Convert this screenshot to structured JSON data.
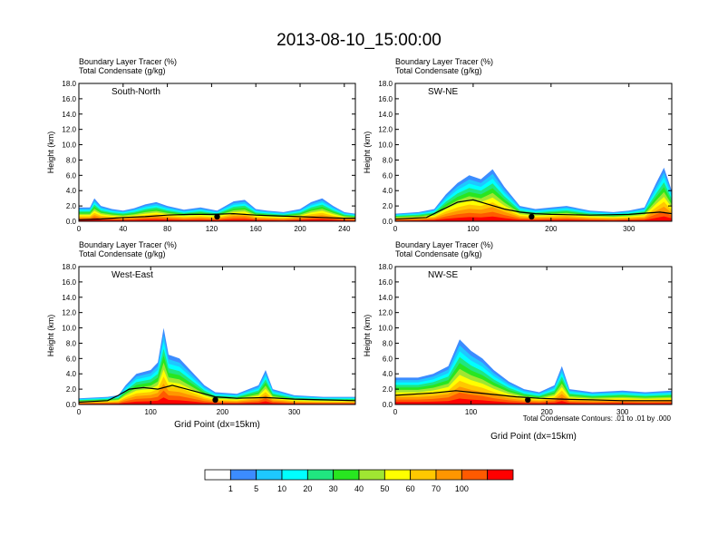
{
  "figure": {
    "title": "2013-08-10_15:00:00",
    "footnote": "Total Condensate Contours: .01 to .01 by .000",
    "colorbar": {
      "colors": [
        "#ffffff",
        "#3c8cff",
        "#1ec8ff",
        "#00ffff",
        "#20e680",
        "#28e620",
        "#a0e632",
        "#ffff00",
        "#ffc800",
        "#ff9600",
        "#ff5a00",
        "#ff0000"
      ],
      "labels": [
        "1",
        "5",
        "10",
        "20",
        "30",
        "40",
        "50",
        "60",
        "70",
        "100"
      ]
    }
  },
  "chart_data": [
    {
      "type": "heatmap",
      "panel_label": "South-North",
      "subtitle_1": "Boundary Layer Tracer    (%)",
      "subtitle_2": "Total Condensate    (g/kg)",
      "xlabel": "",
      "ylabel": "Height (km)",
      "xlim": [
        0,
        250
      ],
      "ylim": [
        0,
        18
      ],
      "xticks": [
        0,
        40,
        80,
        120,
        160,
        200,
        240
      ],
      "yticks": [
        0,
        2,
        4,
        6,
        8,
        10,
        12,
        14,
        16,
        18
      ],
      "tracer_profile": [
        [
          0,
          1.8
        ],
        [
          10,
          1.8
        ],
        [
          14,
          3.0
        ],
        [
          20,
          2.0
        ],
        [
          30,
          1.6
        ],
        [
          40,
          1.4
        ],
        [
          50,
          1.7
        ],
        [
          60,
          2.2
        ],
        [
          70,
          2.5
        ],
        [
          80,
          2.0
        ],
        [
          95,
          1.5
        ],
        [
          110,
          1.8
        ],
        [
          125,
          1.4
        ],
        [
          140,
          2.6
        ],
        [
          150,
          2.8
        ],
        [
          160,
          1.6
        ],
        [
          170,
          1.4
        ],
        [
          185,
          1.2
        ],
        [
          200,
          1.6
        ],
        [
          210,
          2.5
        ],
        [
          220,
          3.0
        ],
        [
          230,
          2.0
        ],
        [
          240,
          1.2
        ],
        [
          250,
          1.0
        ]
      ],
      "terrain_profile": [
        [
          0,
          0.2
        ],
        [
          20,
          0.3
        ],
        [
          40,
          0.5
        ],
        [
          60,
          0.6
        ],
        [
          80,
          0.8
        ],
        [
          100,
          0.9
        ],
        [
          120,
          0.9
        ],
        [
          140,
          1.0
        ],
        [
          160,
          0.8
        ],
        [
          180,
          0.7
        ],
        [
          200,
          0.6
        ],
        [
          220,
          0.5
        ],
        [
          240,
          0.4
        ],
        [
          250,
          0.4
        ]
      ],
      "marker_x": 125
    },
    {
      "type": "heatmap",
      "panel_label": "SW-NE",
      "subtitle_1": "Boundary Layer Tracer    (%)",
      "subtitle_2": "Total Condensate    (g/kg)",
      "xlabel": "",
      "ylabel": "Height (km)",
      "xlim": [
        0,
        355
      ],
      "ylim": [
        0,
        18
      ],
      "xticks": [
        0,
        100,
        200,
        300
      ],
      "yticks": [
        0,
        2,
        4,
        6,
        8,
        10,
        12,
        14,
        16,
        18
      ],
      "tracer_profile": [
        [
          0,
          1.0
        ],
        [
          30,
          1.2
        ],
        [
          50,
          1.6
        ],
        [
          65,
          3.5
        ],
        [
          80,
          5.0
        ],
        [
          95,
          6.0
        ],
        [
          110,
          5.5
        ],
        [
          125,
          6.8
        ],
        [
          140,
          4.5
        ],
        [
          160,
          2.0
        ],
        [
          180,
          1.6
        ],
        [
          200,
          1.8
        ],
        [
          220,
          2.0
        ],
        [
          250,
          1.4
        ],
        [
          280,
          1.2
        ],
        [
          300,
          1.4
        ],
        [
          320,
          1.8
        ],
        [
          335,
          5.0
        ],
        [
          345,
          7.0
        ],
        [
          355,
          4.0
        ]
      ],
      "terrain_profile": [
        [
          0,
          0.3
        ],
        [
          40,
          0.5
        ],
        [
          60,
          1.5
        ],
        [
          80,
          2.5
        ],
        [
          100,
          2.8
        ],
        [
          120,
          2.2
        ],
        [
          140,
          1.6
        ],
        [
          160,
          1.2
        ],
        [
          180,
          1.0
        ],
        [
          200,
          0.9
        ],
        [
          250,
          0.8
        ],
        [
          300,
          0.9
        ],
        [
          340,
          1.2
        ],
        [
          355,
          1.0
        ]
      ],
      "marker_x": 175
    },
    {
      "type": "heatmap",
      "panel_label": "West-East",
      "subtitle_1": "Boundary Layer Tracer    (%)",
      "subtitle_2": "Total Condensate    (g/kg)",
      "xlabel": "Grid Point (dx=15km)",
      "ylabel": "Height (km)",
      "xlim": [
        0,
        385
      ],
      "ylim": [
        0,
        18
      ],
      "xticks": [
        0,
        100,
        200,
        300
      ],
      "yticks": [
        0,
        2,
        4,
        6,
        8,
        10,
        12,
        14,
        16,
        18
      ],
      "tracer_profile": [
        [
          0,
          0.8
        ],
        [
          40,
          1.0
        ],
        [
          55,
          1.2
        ],
        [
          65,
          2.5
        ],
        [
          80,
          4.0
        ],
        [
          100,
          4.5
        ],
        [
          110,
          5.5
        ],
        [
          118,
          10.0
        ],
        [
          125,
          6.5
        ],
        [
          140,
          6.0
        ],
        [
          160,
          4.0
        ],
        [
          175,
          2.5
        ],
        [
          190,
          1.6
        ],
        [
          220,
          1.4
        ],
        [
          250,
          2.5
        ],
        [
          260,
          4.5
        ],
        [
          270,
          2.0
        ],
        [
          300,
          1.2
        ],
        [
          340,
          1.0
        ],
        [
          385,
          1.0
        ]
      ],
      "terrain_profile": [
        [
          0,
          0.3
        ],
        [
          40,
          0.5
        ],
        [
          55,
          1.2
        ],
        [
          70,
          2.0
        ],
        [
          90,
          2.2
        ],
        [
          110,
          2.0
        ],
        [
          130,
          2.5
        ],
        [
          150,
          2.0
        ],
        [
          170,
          1.5
        ],
        [
          190,
          1.0
        ],
        [
          220,
          0.8
        ],
        [
          260,
          0.9
        ],
        [
          300,
          0.7
        ],
        [
          340,
          0.6
        ],
        [
          385,
          0.5
        ]
      ],
      "marker_x": 190
    },
    {
      "type": "heatmap",
      "panel_label": "NW-SE",
      "subtitle_1": "Boundary Layer Tracer    (%)",
      "subtitle_2": "Total Condensate    (g/kg)",
      "xlabel": "Grid Point (dx=15km)",
      "ylabel": "Height (km)",
      "xlim": [
        0,
        365
      ],
      "ylim": [
        0,
        18
      ],
      "xticks": [
        0,
        100,
        200,
        300
      ],
      "yticks": [
        0,
        2,
        4,
        6,
        8,
        10,
        12,
        14,
        16,
        18
      ],
      "tracer_profile": [
        [
          0,
          3.5
        ],
        [
          30,
          3.5
        ],
        [
          50,
          4.0
        ],
        [
          70,
          5.0
        ],
        [
          85,
          8.5
        ],
        [
          100,
          7.0
        ],
        [
          115,
          6.0
        ],
        [
          130,
          4.5
        ],
        [
          150,
          3.0
        ],
        [
          170,
          2.0
        ],
        [
          190,
          1.6
        ],
        [
          210,
          2.5
        ],
        [
          220,
          5.0
        ],
        [
          230,
          2.0
        ],
        [
          260,
          1.6
        ],
        [
          300,
          1.8
        ],
        [
          330,
          1.6
        ],
        [
          365,
          1.8
        ]
      ],
      "terrain_profile": [
        [
          0,
          1.2
        ],
        [
          50,
          1.5
        ],
        [
          80,
          1.8
        ],
        [
          100,
          1.6
        ],
        [
          130,
          1.3
        ],
        [
          160,
          1.0
        ],
        [
          190,
          0.8
        ],
        [
          220,
          0.7
        ],
        [
          260,
          0.6
        ],
        [
          300,
          0.5
        ],
        [
          365,
          0.5
        ]
      ],
      "marker_x": 175
    }
  ]
}
